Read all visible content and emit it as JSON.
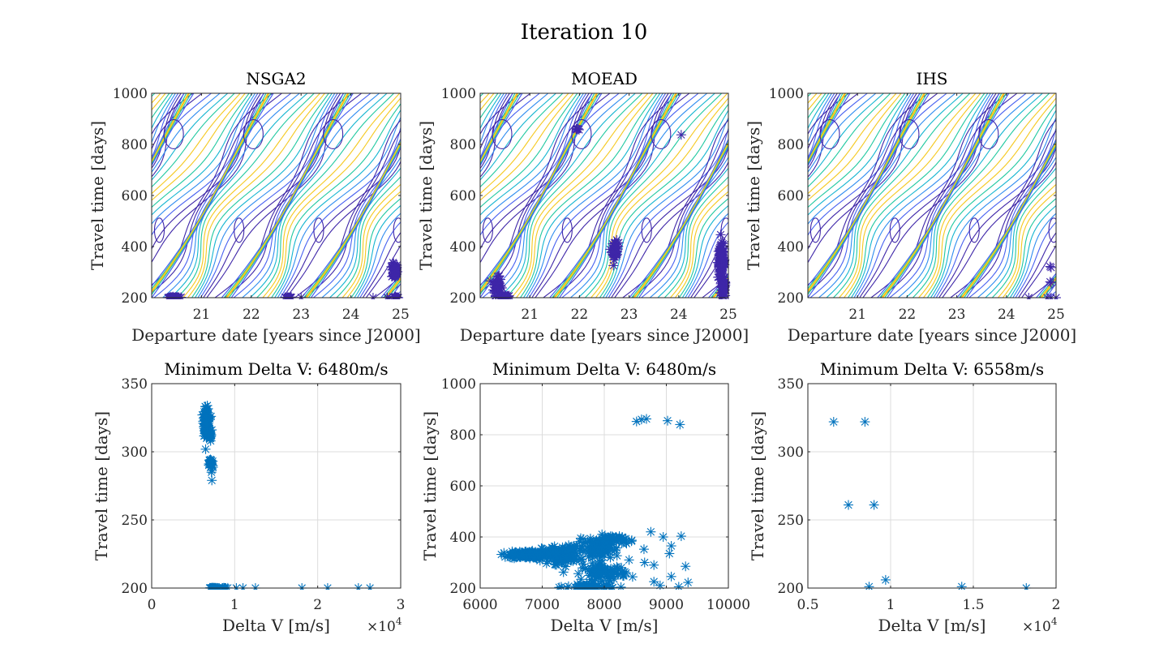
{
  "figure": {
    "title": "Iteration 10",
    "contour_colors": [
      "#3e26a8",
      "#4760f0",
      "#2e8cf0",
      "#14b5d0",
      "#1fc8a0",
      "#7fcd5a",
      "#c5be3a",
      "#f5c81e",
      "#f9fb14"
    ],
    "marker_color_contour": "#3e26a8",
    "marker_color_scatter": "#0072bd"
  },
  "chart_data": [
    {
      "id": "nsga2-contour",
      "type": "contour",
      "title": "NSGA2",
      "xlabel": "Departure date [years since J2000]",
      "ylabel": "Travel time [days]",
      "xlim": [
        20,
        25
      ],
      "ylim": [
        200,
        1000
      ],
      "xticks": [
        "21",
        "22",
        "23",
        "24",
        "25"
      ],
      "xtick_values": [
        21,
        22,
        23,
        24,
        25
      ],
      "yticks": [
        "200",
        "400",
        "600",
        "800",
        "1000"
      ],
      "ytick_values": [
        200,
        400,
        600,
        800,
        1000
      ],
      "grid": false,
      "clusters": [
        {
          "x": 20.45,
          "y": 200,
          "dx": 0.12,
          "dy": 4,
          "n": 40
        },
        {
          "x": 20.55,
          "y": 200,
          "dx": 0.05,
          "dy": 2,
          "n": 5
        },
        {
          "x": 22.75,
          "y": 200,
          "dx": 0.07,
          "dy": 3,
          "n": 20
        },
        {
          "x": 23.0,
          "y": 200,
          "dx": 0.01,
          "dy": 1,
          "n": 1
        },
        {
          "x": 24.45,
          "y": 200,
          "dx": 0.01,
          "dy": 1,
          "n": 1
        },
        {
          "x": 24.75,
          "y": 200,
          "dx": 0.04,
          "dy": 2,
          "n": 3
        },
        {
          "x": 24.9,
          "y": 200,
          "dx": 0.05,
          "dy": 4,
          "n": 20
        },
        {
          "x": 24.88,
          "y": 305,
          "dx": 0.06,
          "dy": 30,
          "n": 60
        }
      ]
    },
    {
      "id": "moead-contour",
      "type": "contour",
      "title": "MOEAD",
      "xlabel": "Departure date [years since J2000]",
      "ylabel": "Travel time [days]",
      "xlim": [
        20,
        25
      ],
      "ylim": [
        200,
        1000
      ],
      "xticks": [
        "21",
        "22",
        "23",
        "24",
        "25"
      ],
      "xtick_values": [
        21,
        22,
        23,
        24,
        25
      ],
      "yticks": [
        "200",
        "400",
        "600",
        "800",
        "1000"
      ],
      "ytick_values": [
        200,
        400,
        600,
        800,
        1000
      ],
      "grid": false,
      "clusters": [
        {
          "x": 20.35,
          "y": 245,
          "dx": 0.08,
          "dy": 35,
          "n": 50
        },
        {
          "x": 20.5,
          "y": 205,
          "dx": 0.08,
          "dy": 6,
          "n": 20
        },
        {
          "x": 20.35,
          "y": 285,
          "dx": 0.02,
          "dy": 4,
          "n": 2
        },
        {
          "x": 21.95,
          "y": 858,
          "dx": 0.03,
          "dy": 6,
          "n": 8
        },
        {
          "x": 22.72,
          "y": 385,
          "dx": 0.07,
          "dy": 35,
          "n": 40
        },
        {
          "x": 24.05,
          "y": 838,
          "dx": 0.01,
          "dy": 1,
          "n": 1
        },
        {
          "x": 24.86,
          "y": 340,
          "dx": 0.07,
          "dy": 65,
          "n": 120
        },
        {
          "x": 24.9,
          "y": 235,
          "dx": 0.05,
          "dy": 35,
          "n": 60
        }
      ]
    },
    {
      "id": "ihs-contour",
      "type": "contour",
      "title": "IHS",
      "xlabel": "Departure date [years since J2000]",
      "ylabel": "Travel time [days]",
      "xlim": [
        20,
        25
      ],
      "ylim": [
        200,
        1000
      ],
      "xticks": [
        "21",
        "22",
        "23",
        "24",
        "25"
      ],
      "xtick_values": [
        21,
        22,
        23,
        24,
        25
      ],
      "yticks": [
        "200",
        "400",
        "600",
        "800",
        "1000"
      ],
      "ytick_values": [
        200,
        400,
        600,
        800,
        1000
      ],
      "grid": false,
      "points": [
        {
          "x": 24.45,
          "y": 200
        },
        {
          "x": 24.82,
          "y": 200
        },
        {
          "x": 24.9,
          "y": 200
        },
        {
          "x": 25.0,
          "y": 200
        },
        {
          "x": 24.88,
          "y": 322
        },
        {
          "x": 24.9,
          "y": 318
        },
        {
          "x": 24.88,
          "y": 262
        },
        {
          "x": 24.9,
          "y": 258
        }
      ]
    },
    {
      "id": "nsga2-scatter",
      "type": "scatter",
      "title": "Minimum Delta V: 6480m/s",
      "xlabel": "Delta V [m/s]",
      "ylabel": "Travel time [days]",
      "xlim": [
        0,
        30000
      ],
      "ylim": [
        200,
        350
      ],
      "xticks": [
        "0",
        "1",
        "2",
        "3"
      ],
      "xtick_values": [
        0,
        10000,
        20000,
        30000
      ],
      "x_multiplier": "×10",
      "x_multiplier_exp": "4",
      "yticks": [
        "200",
        "250",
        "300",
        "350"
      ],
      "ytick_values": [
        200,
        250,
        300,
        350
      ],
      "grid": true,
      "clusters": [
        {
          "x": 6600,
          "y": 322,
          "dx": 350,
          "dy": 10,
          "n": 120
        },
        {
          "x": 7000,
          "y": 312,
          "dx": 250,
          "dy": 4,
          "n": 20
        },
        {
          "x": 7150,
          "y": 291,
          "dx": 250,
          "dy": 5,
          "n": 30
        },
        {
          "x": 7500,
          "y": 200,
          "dx": 600,
          "dy": 0.3,
          "n": 40
        },
        {
          "x": 8800,
          "y": 200,
          "dx": 500,
          "dy": 0.3,
          "n": 10
        }
      ],
      "points": [
        {
          "x": 6500,
          "y": 333
        },
        {
          "x": 7100,
          "y": 308
        },
        {
          "x": 7200,
          "y": 285
        },
        {
          "x": 7250,
          "y": 279
        },
        {
          "x": 10200,
          "y": 200
        },
        {
          "x": 11000,
          "y": 200
        },
        {
          "x": 12500,
          "y": 200
        },
        {
          "x": 18100,
          "y": 200
        },
        {
          "x": 21200,
          "y": 200
        },
        {
          "x": 24900,
          "y": 200
        },
        {
          "x": 26300,
          "y": 200
        }
      ]
    },
    {
      "id": "moead-scatter",
      "type": "scatter",
      "title": "Minimum Delta V: 6480m/s",
      "xlabel": "Delta V [m/s]",
      "ylabel": "Travel time [days]",
      "xlim": [
        6000,
        10000
      ],
      "ylim": [
        200,
        1000
      ],
      "xticks": [
        "6000",
        "7000",
        "8000",
        "9000",
        "10000"
      ],
      "xtick_values": [
        6000,
        7000,
        8000,
        9000,
        10000
      ],
      "yticks": [
        "200",
        "400",
        "600",
        "800",
        "1000"
      ],
      "ytick_values": [
        200,
        400,
        600,
        800,
        1000
      ],
      "grid": true,
      "clusters": [
        {
          "x": 6750,
          "y": 330,
          "dx": 280,
          "dy": 14,
          "n": 150
        },
        {
          "x": 7300,
          "y": 330,
          "dx": 300,
          "dy": 35,
          "n": 150
        },
        {
          "x": 7900,
          "y": 350,
          "dx": 350,
          "dy": 40,
          "n": 100
        },
        {
          "x": 8000,
          "y": 260,
          "dx": 350,
          "dy": 30,
          "n": 90
        },
        {
          "x": 8100,
          "y": 390,
          "dx": 250,
          "dy": 18,
          "n": 60
        },
        {
          "x": 7800,
          "y": 205,
          "dx": 400,
          "dy": 8,
          "n": 60
        }
      ],
      "points": [
        {
          "x": 8520,
          "y": 852
        },
        {
          "x": 8600,
          "y": 860
        },
        {
          "x": 8680,
          "y": 862
        },
        {
          "x": 9020,
          "y": 855
        },
        {
          "x": 9220,
          "y": 840
        },
        {
          "x": 8750,
          "y": 420
        },
        {
          "x": 8950,
          "y": 400
        },
        {
          "x": 9240,
          "y": 403
        },
        {
          "x": 9080,
          "y": 365
        },
        {
          "x": 9050,
          "y": 335
        },
        {
          "x": 8640,
          "y": 352
        },
        {
          "x": 9310,
          "y": 285
        },
        {
          "x": 9080,
          "y": 245
        },
        {
          "x": 9350,
          "y": 222
        },
        {
          "x": 9200,
          "y": 205
        },
        {
          "x": 8900,
          "y": 210
        },
        {
          "x": 8800,
          "y": 225
        },
        {
          "x": 8650,
          "y": 300
        },
        {
          "x": 8800,
          "y": 290
        },
        {
          "x": 7400,
          "y": 200
        },
        {
          "x": 8400,
          "y": 310
        }
      ]
    },
    {
      "id": "ihs-scatter",
      "type": "scatter",
      "title": "Minimum Delta V: 6558m/s",
      "xlabel": "Delta V [m/s]",
      "ylabel": "Travel time [days]",
      "xlim": [
        5000,
        20000
      ],
      "ylim": [
        200,
        350
      ],
      "xticks": [
        "0.5",
        "1",
        "1.5",
        "2"
      ],
      "xtick_values": [
        5000,
        10000,
        15000,
        20000
      ],
      "x_multiplier": "×10",
      "x_multiplier_exp": "4",
      "yticks": [
        "200",
        "250",
        "300",
        "350"
      ],
      "ytick_values": [
        200,
        250,
        300,
        350
      ],
      "grid": true,
      "points": [
        {
          "x": 6558,
          "y": 322
        },
        {
          "x": 8450,
          "y": 322
        },
        {
          "x": 7450,
          "y": 261
        },
        {
          "x": 9000,
          "y": 261
        },
        {
          "x": 8700,
          "y": 201
        },
        {
          "x": 9700,
          "y": 206
        },
        {
          "x": 14300,
          "y": 201
        },
        {
          "x": 18200,
          "y": 200
        }
      ]
    }
  ]
}
